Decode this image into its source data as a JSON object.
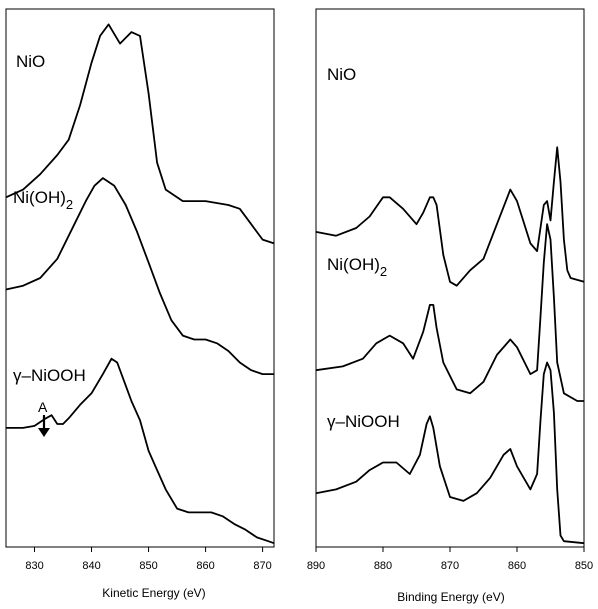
{
  "chart_data": [
    {
      "type": "line",
      "xlabel": "Kinetic Energy (eV)",
      "xlim": [
        825,
        872
      ],
      "x_ticks": [
        830,
        840,
        850,
        860,
        870
      ],
      "x_tick_labels": [
        "830",
        "840",
        "850",
        "860",
        "870"
      ],
      "annotations": [
        {
          "text": "A",
          "x": 833,
          "series": "γ–NiOOH"
        }
      ],
      "series": [
        {
          "name": "NiO",
          "points": [
            [
              825,
              91
            ],
            [
              828,
              93
            ],
            [
              831,
              97
            ],
            [
              834,
              102
            ],
            [
              836,
              106
            ],
            [
              838,
              115
            ],
            [
              840,
              126
            ],
            [
              841.5,
              133
            ],
            [
              843,
              136
            ],
            [
              845,
              131
            ],
            [
              847,
              134
            ],
            [
              848.5,
              133
            ],
            [
              850,
              118
            ],
            [
              851.5,
              100
            ],
            [
              853,
              93
            ],
            [
              856,
              90
            ],
            [
              860,
              90
            ],
            [
              864,
              89
            ],
            [
              866,
              88
            ],
            [
              868,
              84
            ],
            [
              870,
              80
            ],
            [
              872,
              79
            ]
          ]
        },
        {
          "name": "Ni(OH)2",
          "points": [
            [
              825,
              67
            ],
            [
              828,
              68
            ],
            [
              831,
              70
            ],
            [
              834,
              75
            ],
            [
              837,
              84
            ],
            [
              839,
              90
            ],
            [
              840.5,
              94
            ],
            [
              842,
              96
            ],
            [
              844,
              94
            ],
            [
              846,
              89
            ],
            [
              848,
              82
            ],
            [
              850,
              74
            ],
            [
              852,
              66
            ],
            [
              854,
              59
            ],
            [
              856,
              55
            ],
            [
              858,
              54
            ],
            [
              860,
              54
            ],
            [
              862,
              53
            ],
            [
              864,
              51
            ],
            [
              866,
              48
            ],
            [
              868,
              46
            ],
            [
              870,
              45
            ],
            [
              872,
              45
            ]
          ]
        },
        {
          "name": "γ–NiOOH",
          "points": [
            [
              825,
              31
            ],
            [
              828,
              31
            ],
            [
              830,
              31.5
            ],
            [
              832,
              33.5
            ],
            [
              833,
              34.3
            ],
            [
              834,
              32
            ],
            [
              835,
              32
            ],
            [
              836,
              33.5
            ],
            [
              838,
              37
            ],
            [
              840,
              40
            ],
            [
              842,
              45
            ],
            [
              843.5,
              49
            ],
            [
              844.5,
              48
            ],
            [
              845.5,
              44
            ],
            [
              847,
              38
            ],
            [
              848.5,
              33
            ],
            [
              850,
              25
            ],
            [
              851.5,
              20
            ],
            [
              853,
              15
            ],
            [
              855,
              10
            ],
            [
              857,
              9
            ],
            [
              859,
              9
            ],
            [
              861,
              9
            ],
            [
              863,
              8
            ],
            [
              865,
              6
            ],
            [
              867,
              4.5
            ],
            [
              869,
              2.5
            ],
            [
              871,
              1.5
            ],
            [
              872,
              1
            ]
          ]
        }
      ]
    },
    {
      "type": "line",
      "xlabel": "Binding Energy (eV)",
      "xlim": [
        890,
        850
      ],
      "x_reversed": true,
      "x_ticks": [
        890,
        880,
        870,
        860,
        850
      ],
      "x_tick_labels": [
        "890",
        "880",
        "870",
        "860",
        "850"
      ],
      "series": [
        {
          "name": "NiO",
          "points": [
            [
              890,
              82
            ],
            [
              887,
              81
            ],
            [
              884,
              83
            ],
            [
              882,
              86
            ],
            [
              880,
              91
            ],
            [
              879,
              91
            ],
            [
              877,
              88
            ],
            [
              875,
              84
            ],
            [
              874,
              87
            ],
            [
              873,
              91
            ],
            [
              872.5,
              91
            ],
            [
              872,
              89
            ],
            [
              871,
              76
            ],
            [
              870,
              69
            ],
            [
              869,
              68
            ],
            [
              867,
              72
            ],
            [
              865,
              75
            ],
            [
              863,
              84
            ],
            [
              861,
              93
            ],
            [
              860,
              90
            ],
            [
              858,
              79
            ],
            [
              857,
              77
            ],
            [
              856,
              89
            ],
            [
              855.5,
              90
            ],
            [
              855,
              85
            ],
            [
              854.5,
              95
            ],
            [
              854,
              104
            ],
            [
              853.5,
              95
            ],
            [
              853,
              80
            ],
            [
              852.5,
              72
            ],
            [
              852,
              70
            ],
            [
              850,
              69
            ]
          ]
        },
        {
          "name": "Ni(OH)2",
          "points": [
            [
              890,
              46
            ],
            [
              886,
              47
            ],
            [
              883,
              49
            ],
            [
              881,
              53
            ],
            [
              879,
              55
            ],
            [
              877,
              53
            ],
            [
              875.5,
              49
            ],
            [
              874,
              56
            ],
            [
              873,
              63
            ],
            [
              872.5,
              63
            ],
            [
              872,
              57
            ],
            [
              871,
              48
            ],
            [
              869,
              41
            ],
            [
              867,
              40
            ],
            [
              865,
              43
            ],
            [
              863,
              50
            ],
            [
              861,
              54
            ],
            [
              860,
              52
            ],
            [
              858,
              45
            ],
            [
              857,
              46
            ],
            [
              856.5,
              60
            ],
            [
              856,
              74
            ],
            [
              855.5,
              84
            ],
            [
              855,
              80
            ],
            [
              854.5,
              65
            ],
            [
              854,
              48
            ],
            [
              853,
              40
            ],
            [
              851,
              38
            ],
            [
              850,
              38
            ]
          ]
        },
        {
          "name": "γ–NiOOH",
          "points": [
            [
              890,
              14
            ],
            [
              887,
              15
            ],
            [
              884,
              17
            ],
            [
              882,
              20
            ],
            [
              880,
              22
            ],
            [
              878,
              22
            ],
            [
              876,
              19
            ],
            [
              874.5,
              24
            ],
            [
              873.5,
              32
            ],
            [
              873,
              34
            ],
            [
              872.5,
              31
            ],
            [
              871.5,
              21
            ],
            [
              870,
              13
            ],
            [
              868,
              12
            ],
            [
              866,
              14
            ],
            [
              864,
              18
            ],
            [
              862,
              24
            ],
            [
              861,
              25.5
            ],
            [
              860,
              21
            ],
            [
              858,
              15
            ],
            [
              857,
              19
            ],
            [
              856.5,
              33
            ],
            [
              856,
              45
            ],
            [
              855.5,
              48
            ],
            [
              855,
              46
            ],
            [
              854.5,
              35
            ],
            [
              854,
              15
            ],
            [
              853.5,
              3
            ],
            [
              853,
              1.5
            ],
            [
              850,
              1
            ]
          ]
        }
      ]
    }
  ]
}
